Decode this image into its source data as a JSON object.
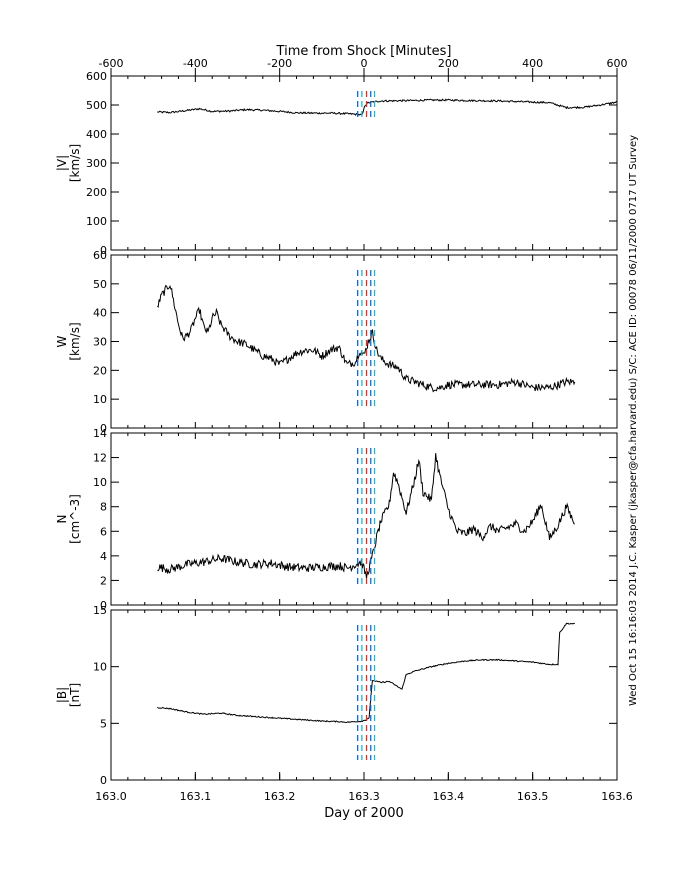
{
  "top_axis": {
    "label": "Time from Shock [Minutes]",
    "ticks": [
      "-600",
      "-400",
      "-200",
      "0",
      "200",
      "400",
      "600"
    ]
  },
  "bottom_axis": {
    "label": "Day of 2000",
    "ticks": [
      "163.0",
      "163.1",
      "163.2",
      "163.3",
      "163.4",
      "163.5",
      "163.6"
    ]
  },
  "side_note": "Wed Oct 15 16:16:03 2014   J.C. Kasper (jkasper@cfa.harvard.edu)   S/C: ACE ID: 00078 06/11/2000  0717 UT Survey",
  "colors": {
    "trace": "#000000",
    "marker_blue": "#1565d8",
    "marker_cyan": "#1fb8c9",
    "marker_red": "#e0301e"
  },
  "chart_data": [
    {
      "type": "line",
      "panel": "speed",
      "ylabel_line1": "|V|",
      "ylabel_line2": "[km/s]",
      "ylim": [
        0,
        600
      ],
      "yticks": [
        0,
        100,
        200,
        300,
        400,
        500,
        600
      ],
      "series": [
        {
          "x": [
            163.055,
            163.07,
            163.09,
            163.105,
            163.12,
            163.14,
            163.16,
            163.18,
            163.2,
            163.22,
            163.24,
            163.26,
            163.28,
            163.29,
            163.298,
            163.301,
            163.305,
            163.32,
            163.35,
            163.38,
            163.4,
            163.43,
            163.46,
            163.49,
            163.52,
            163.54,
            163.56,
            163.58,
            163.6
          ],
          "y": [
            476,
            474,
            481,
            487,
            478,
            479,
            484,
            482,
            478,
            473,
            472,
            472,
            470,
            468,
            466,
            498,
            508,
            514,
            515,
            517,
            517,
            515,
            514,
            511,
            508,
            491,
            492,
            500,
            510
          ]
        }
      ]
    },
    {
      "type": "line",
      "panel": "thermal_speed",
      "ylabel_line1": "W",
      "ylabel_line2": "[km/s]",
      "ylim": [
        0,
        60
      ],
      "yticks": [
        0,
        10,
        20,
        30,
        40,
        50,
        60
      ],
      "series": [
        {
          "x": [
            163.055,
            163.06,
            163.065,
            163.07,
            163.075,
            163.08,
            163.085,
            163.09,
            163.095,
            163.1,
            163.105,
            163.11,
            163.115,
            163.12,
            163.125,
            163.13,
            163.14,
            163.15,
            163.16,
            163.17,
            163.18,
            163.19,
            163.2,
            163.21,
            163.22,
            163.23,
            163.24,
            163.25,
            163.26,
            163.27,
            163.28,
            163.29,
            163.295,
            163.3,
            163.305,
            163.31,
            163.315,
            163.32,
            163.33,
            163.34,
            163.35,
            163.36,
            163.37,
            163.38,
            163.39,
            163.4,
            163.42,
            163.44,
            163.46,
            163.48,
            163.5,
            163.52,
            163.53,
            163.54,
            163.55
          ],
          "y": [
            42,
            46,
            48,
            50,
            43,
            36,
            31,
            32,
            34,
            38,
            41,
            35,
            33,
            38,
            40,
            36,
            32,
            30,
            29,
            27,
            25,
            24,
            22,
            24,
            26,
            27,
            27,
            25,
            27,
            28,
            22,
            23,
            27,
            25,
            30,
            33,
            27,
            24,
            22,
            21,
            17,
            16,
            15,
            14,
            14,
            15,
            15,
            15,
            15,
            16,
            14,
            14,
            15,
            16,
            16
          ]
        }
      ]
    },
    {
      "type": "line",
      "panel": "density",
      "ylabel_line1": "N",
      "ylabel_line2": "[cm^-3]",
      "ylim": [
        0,
        14
      ],
      "yticks": [
        0,
        2,
        4,
        6,
        8,
        10,
        12,
        14
      ],
      "series": [
        {
          "x": [
            163.055,
            163.07,
            163.09,
            163.11,
            163.13,
            163.15,
            163.17,
            163.19,
            163.21,
            163.23,
            163.25,
            163.27,
            163.28,
            163.29,
            163.297,
            163.303,
            163.31,
            163.315,
            163.32,
            163.33,
            163.335,
            163.34,
            163.35,
            163.36,
            163.365,
            163.37,
            163.38,
            163.385,
            163.39,
            163.4,
            163.41,
            163.42,
            163.43,
            163.44,
            163.45,
            163.46,
            163.47,
            163.48,
            163.49,
            163.5,
            163.51,
            163.52,
            163.53,
            163.54,
            163.55
          ],
          "y": [
            3.1,
            2.9,
            3.3,
            3.5,
            3.8,
            3.5,
            3.3,
            3.4,
            3.1,
            3.0,
            3.1,
            3.2,
            3.0,
            3.3,
            3.5,
            2.3,
            4.0,
            5.5,
            6.8,
            8.2,
            10.8,
            10.0,
            7.5,
            10.2,
            11.8,
            9.2,
            8.5,
            12.2,
            10.5,
            7.8,
            6.0,
            5.8,
            6.2,
            5.5,
            6.4,
            6.0,
            6.3,
            6.6,
            6.0,
            6.8,
            8.2,
            5.4,
            6.5,
            8.0,
            6.6
          ]
        }
      ]
    },
    {
      "type": "line",
      "panel": "field",
      "ylabel_line1": "|B|",
      "ylabel_line2": "[nT]",
      "ylim": [
        0,
        15
      ],
      "yticks": [
        0,
        5,
        10,
        15
      ],
      "series": [
        {
          "x": [
            163.055,
            163.07,
            163.09,
            163.11,
            163.13,
            163.15,
            163.17,
            163.19,
            163.21,
            163.23,
            163.25,
            163.27,
            163.28,
            163.29,
            163.298,
            163.302,
            163.306,
            163.31,
            163.32,
            163.33,
            163.345,
            163.35,
            163.36,
            163.38,
            163.4,
            163.42,
            163.44,
            163.46,
            163.48,
            163.5,
            163.52,
            163.53,
            163.532,
            163.54,
            163.55
          ],
          "y": [
            6.4,
            6.3,
            6.0,
            5.8,
            5.9,
            5.7,
            5.6,
            5.5,
            5.4,
            5.3,
            5.2,
            5.15,
            5.1,
            5.15,
            5.2,
            5.3,
            5.5,
            8.8,
            8.6,
            8.7,
            8.0,
            9.3,
            9.6,
            10.0,
            10.3,
            10.5,
            10.6,
            10.6,
            10.5,
            10.4,
            10.2,
            10.2,
            13.0,
            13.8,
            13.8
          ]
        }
      ]
    }
  ],
  "markers": {
    "days": [
      163.2925,
      163.2975,
      163.303,
      163.308,
      163.3125
    ],
    "roles": [
      "blue",
      "cyan",
      "red",
      "blue",
      "cyan"
    ]
  }
}
